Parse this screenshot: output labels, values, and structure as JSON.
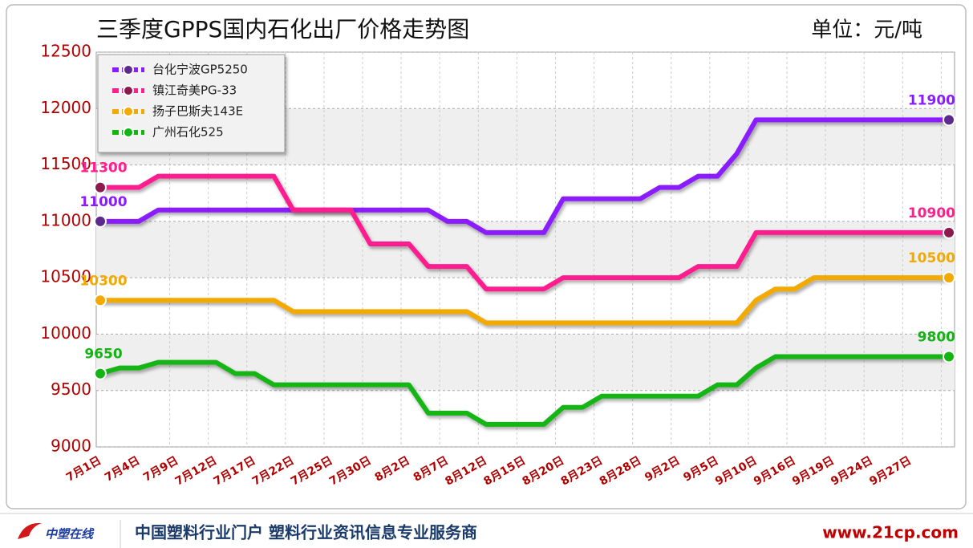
{
  "chart_data": {
    "type": "line",
    "title": "三季度GPPS国内石化出厂价格走势图",
    "unit_label": "单位：元/吨",
    "categories": [
      "7月1日",
      null,
      "7月4日",
      null,
      "7月9日",
      null,
      "7月12日",
      null,
      "7月17日",
      null,
      "7月22日",
      null,
      "7月25日",
      null,
      "7月30日",
      null,
      "8月2日",
      null,
      "8月7日",
      null,
      "8月12日",
      null,
      "8月15日",
      null,
      "8月20日",
      null,
      "8月23日",
      null,
      "8月28日",
      null,
      "9月2日",
      null,
      "9月5日",
      null,
      "9月10日",
      null,
      "9月16日",
      null,
      "9月19日",
      null,
      "9月24日",
      null,
      "9月27日",
      null,
      null
    ],
    "series": [
      {
        "name": "台化宁波GP5250",
        "color": "#8a1cff",
        "marker_color": "#5b2a8c",
        "values": [
          11000,
          11000,
          11000,
          11100,
          11100,
          11100,
          11100,
          11100,
          11100,
          11100,
          11100,
          11100,
          11100,
          11100,
          11100,
          11100,
          11100,
          11100,
          11000,
          11000,
          10900,
          10900,
          10900,
          10900,
          11200,
          11200,
          11200,
          11200,
          11200,
          11300,
          11300,
          11400,
          11400,
          11600,
          11900,
          11900,
          11900,
          11900,
          11900,
          11900,
          11900,
          11900,
          11900,
          11900,
          11900
        ]
      },
      {
        "name": "镇江奇美PG-33",
        "color": "#ff1f8e",
        "marker_color": "#8c1a4c",
        "values": [
          11300,
          11300,
          11300,
          11400,
          11400,
          11400,
          11400,
          11400,
          11400,
          11400,
          11100,
          11100,
          11100,
          11100,
          10800,
          10800,
          10800,
          10600,
          10600,
          10600,
          10400,
          10400,
          10400,
          10400,
          10500,
          10500,
          10500,
          10500,
          10500,
          10500,
          10500,
          10600,
          10600,
          10600,
          10900,
          10900,
          10900,
          10900,
          10900,
          10900,
          10900,
          10900,
          10900,
          10900,
          10900
        ]
      },
      {
        "name": "扬子巴斯夫143E",
        "color": "#f2a900",
        "marker_color": "#f2a900",
        "values": [
          10300,
          10300,
          10300,
          10300,
          10300,
          10300,
          10300,
          10300,
          10300,
          10300,
          10200,
          10200,
          10200,
          10200,
          10200,
          10200,
          10200,
          10200,
          10200,
          10200,
          10100,
          10100,
          10100,
          10100,
          10100,
          10100,
          10100,
          10100,
          10100,
          10100,
          10100,
          10100,
          10100,
          10100,
          10300,
          10400,
          10400,
          10500,
          10500,
          10500,
          10500,
          10500,
          10500,
          10500,
          10500
        ]
      },
      {
        "name": "广州石化525",
        "color": "#12b512",
        "marker_color": "#12b512",
        "values": [
          9650,
          9700,
          9700,
          9750,
          9750,
          9750,
          9750,
          9650,
          9650,
          9550,
          9550,
          9550,
          9550,
          9550,
          9550,
          9550,
          9550,
          9300,
          9300,
          9300,
          9200,
          9200,
          9200,
          9200,
          9350,
          9350,
          9450,
          9450,
          9450,
          9450,
          9450,
          9450,
          9550,
          9550,
          9700,
          9800,
          9800,
          9800,
          9800,
          9800,
          9800,
          9800,
          9800,
          9800,
          9800
        ]
      }
    ],
    "ylim": [
      9000,
      12500
    ],
    "yticks": [
      9000,
      9500,
      10000,
      10500,
      11000,
      11500,
      12000,
      12500
    ],
    "grid": true,
    "legend": "top-left"
  },
  "footer": {
    "logo": "中塑在线",
    "slogan": "中国塑料行业门户 塑料行业资讯信息专业服务商",
    "url": "www.21cp.com"
  }
}
